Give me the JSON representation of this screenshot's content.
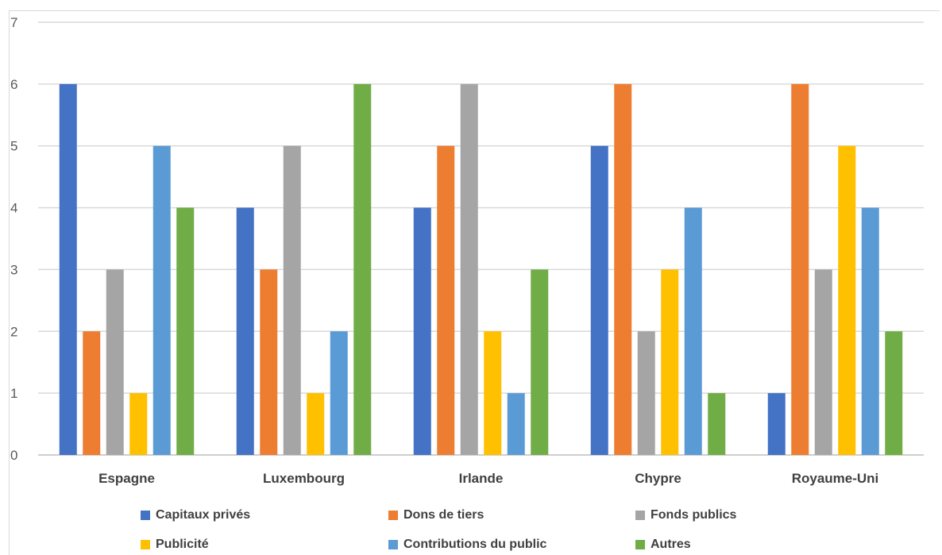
{
  "chart_data": {
    "type": "bar",
    "categories": [
      "Espagne",
      "Luxembourg",
      "Irlande",
      "Chypre",
      "Royaume-Uni"
    ],
    "series": [
      {
        "name": "Capitaux privés",
        "color": "#4472c4",
        "values": [
          6,
          4,
          4,
          5,
          1
        ]
      },
      {
        "name": "Dons de tiers",
        "color": "#ed7d31",
        "values": [
          2,
          3,
          5,
          6,
          6
        ]
      },
      {
        "name": "Fonds publics",
        "color": "#a5a5a5",
        "values": [
          3,
          5,
          6,
          2,
          3
        ]
      },
      {
        "name": "Publicité",
        "color": "#ffc000",
        "values": [
          1,
          1,
          2,
          3,
          5
        ]
      },
      {
        "name": "Contributions du public",
        "color": "#5b9bd5",
        "values": [
          5,
          2,
          1,
          4,
          4
        ]
      },
      {
        "name": "Autres",
        "color": "#70ad47",
        "values": [
          4,
          6,
          3,
          1,
          2
        ]
      }
    ],
    "yticks": [
      "0",
      "1",
      "2",
      "3",
      "4",
      "5",
      "6",
      "7"
    ],
    "ylim": [
      0,
      7
    ],
    "grid": true,
    "legend_position": "bottom"
  }
}
